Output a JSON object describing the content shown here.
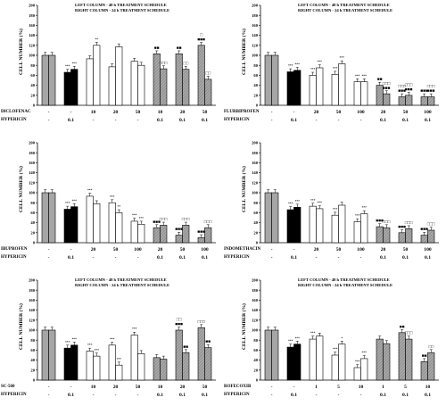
{
  "chart_data": [
    {
      "type": "bar",
      "legend": [
        "LEFT COLUMN - 48 h TREATMENT SCHEDULE",
        "RIGHT COLUMN - 24 h TREATMENT SCHEDULE"
      ],
      "ylabel": "CELL NUMBER (%)",
      "ylim": [
        0,
        200
      ],
      "yticks": [
        0,
        20,
        40,
        60,
        80,
        100,
        120,
        140,
        160,
        180,
        200
      ],
      "drug": "DICLOFENAC",
      "drug_doses": [
        "-",
        "-",
        "10",
        "20",
        "50",
        "10",
        "20",
        "50"
      ],
      "hypericin_label": "HYPERICIN",
      "hypericin_doses": [
        "-",
        "0.1",
        "-",
        "-",
        "-",
        "0.1",
        "0.1",
        "0.1"
      ],
      "groups": [
        {
          "kind": "control",
          "v48": 100,
          "v24": 100,
          "a48": "",
          "a24": ""
        },
        {
          "kind": "hypericin",
          "v48": 66,
          "v24": 72,
          "a48": "***",
          "a24": "***"
        },
        {
          "kind": "drug",
          "v48": 93,
          "v24": 120,
          "a48": "",
          "a24": "**"
        },
        {
          "kind": "drug",
          "v48": 77,
          "v24": 117,
          "a48": "",
          "a24": ""
        },
        {
          "kind": "drug",
          "v48": 88,
          "v24": 80,
          "a48": "",
          "a24": ""
        },
        {
          "kind": "combo",
          "v48": 103,
          "v24": 73,
          "a48": "■■",
          "a24": "□□□"
        },
        {
          "kind": "combo",
          "v48": 103,
          "v24": 72,
          "a48": "■■",
          "a24": "□□"
        },
        {
          "kind": "combo",
          "v48": 120,
          "v24": 52,
          "a48": "□\n■■■",
          "a24": "□□"
        }
      ]
    },
    {
      "type": "bar",
      "legend": [
        "LEFT COLUMN - 48 h TREATMENT SCHEDULE",
        "RIGHT COLUMN - 24 h TREATMENT SCHEDULE"
      ],
      "ylabel": "CELL NUMBER (%)",
      "ylim": [
        0,
        200
      ],
      "yticks": [
        0,
        20,
        40,
        60,
        80,
        100,
        120,
        140,
        160,
        180,
        200
      ],
      "drug": "FLURBIPROFEN",
      "drug_doses": [
        "-",
        "-",
        "20",
        "50",
        "100",
        "20",
        "50",
        "100"
      ],
      "hypericin_label": "HYPERICIN",
      "hypericin_doses": [
        "-",
        "0.1",
        "-",
        "-",
        "-",
        "0.1",
        "0.1",
        "0.1"
      ],
      "groups": [
        {
          "kind": "control",
          "v48": 100,
          "v24": 100,
          "a48": "",
          "a24": ""
        },
        {
          "kind": "hypericin",
          "v48": 67,
          "v24": 70,
          "a48": "***",
          "a24": "***"
        },
        {
          "kind": "drug",
          "v48": 60,
          "v24": 75,
          "a48": "***",
          "a24": "***"
        },
        {
          "kind": "drug",
          "v48": 62,
          "v24": 83,
          "a48": "***",
          "a24": "***"
        },
        {
          "kind": "drug",
          "v48": 47,
          "v24": 47,
          "a48": "***",
          "a24": "***"
        },
        {
          "kind": "combo",
          "v48": 40,
          "v24": 23,
          "a48": "■■",
          "a24": "□□□\n■■■"
        },
        {
          "kind": "combo",
          "v48": 17,
          "v24": 20,
          "a48": "□□□\n■■■",
          "a24": "□□□\n■■■"
        },
        {
          "kind": "combo",
          "v48": 17,
          "v24": 17,
          "a48": "■■■",
          "a24": "□□□\n■■■"
        }
      ]
    },
    {
      "type": "bar",
      "legend": [],
      "ylabel": "CELL NUMBER (%)",
      "ylim": [
        0,
        200
      ],
      "yticks": [
        0,
        20,
        40,
        60,
        80,
        100,
        120,
        140,
        160,
        180,
        200
      ],
      "drug": "IBUPROFEN",
      "drug_doses": [
        "-",
        "-",
        "20",
        "50",
        "100",
        "20",
        "50",
        "100"
      ],
      "hypericin_label": "HYPERICIN",
      "hypericin_doses": [
        "-",
        "0.1",
        "-",
        "-",
        "-",
        "0.1",
        "0.1",
        "0.1"
      ],
      "groups": [
        {
          "kind": "control",
          "v48": 100,
          "v24": 100,
          "a48": "",
          "a24": ""
        },
        {
          "kind": "hypericin",
          "v48": 67,
          "v24": 72,
          "a48": "***",
          "a24": "***"
        },
        {
          "kind": "drug",
          "v48": 93,
          "v24": 78,
          "a48": "***",
          "a24": ""
        },
        {
          "kind": "drug",
          "v48": 80,
          "v24": 60,
          "a48": "***",
          "a24": "**"
        },
        {
          "kind": "drug",
          "v48": 43,
          "v24": 37,
          "a48": "***",
          "a24": "***"
        },
        {
          "kind": "combo",
          "v48": 30,
          "v24": 35,
          "a48": "■■■",
          "a24": "□□□"
        },
        {
          "kind": "combo",
          "v48": 15,
          "v24": 35,
          "a48": "■■■",
          "a24": "□□□"
        },
        {
          "kind": "combo",
          "v48": 10,
          "v24": 30,
          "a48": "■■■",
          "a24": "□□□"
        }
      ]
    },
    {
      "type": "bar",
      "legend": [],
      "ylabel": "CELL NUMBER (%)",
      "ylim": [
        0,
        200
      ],
      "yticks": [
        0,
        20,
        40,
        60,
        80,
        100,
        120,
        140,
        160,
        180,
        200
      ],
      "drug": "INDOMETHACIN",
      "drug_doses": [
        "-",
        "-",
        "20",
        "50",
        "100",
        "20",
        "50",
        "100"
      ],
      "hypericin_label": "HYPERICIN",
      "hypericin_doses": [
        "-",
        "0.1",
        "-",
        "-",
        "-",
        "0.1",
        "0.1",
        "0.1"
      ],
      "groups": [
        {
          "kind": "control",
          "v48": 100,
          "v24": 100,
          "a48": "",
          "a24": ""
        },
        {
          "kind": "hypericin",
          "v48": 66,
          "v24": 71,
          "a48": "***",
          "a24": "***"
        },
        {
          "kind": "drug",
          "v48": 73,
          "v24": 68,
          "a48": "***",
          "a24": "***"
        },
        {
          "kind": "drug",
          "v48": 55,
          "v24": 75,
          "a48": "***",
          "a24": ""
        },
        {
          "kind": "drug",
          "v48": 42,
          "v24": 58,
          "a48": "***",
          "a24": "***"
        },
        {
          "kind": "combo",
          "v48": 32,
          "v24": 30,
          "a48": "■■■",
          "a24": "□□□"
        },
        {
          "kind": "combo",
          "v48": 20,
          "v24": 28,
          "a48": "■■■",
          "a24": "□□□"
        },
        {
          "kind": "combo",
          "v48": 15,
          "v24": 25,
          "a48": "■■■",
          "a24": "□□□"
        }
      ]
    },
    {
      "type": "bar",
      "legend": [
        "LEFT COLUMN - 48 h TREATMENT SCHEDULE",
        "RIGHT COLUMN - 24 h TREATMENT SCHEDULE"
      ],
      "ylabel": "CELL NUMBER (%)",
      "ylim": [
        0,
        200
      ],
      "yticks": [
        0,
        20,
        40,
        60,
        80,
        100,
        120,
        140,
        160,
        180,
        200
      ],
      "drug": "SC-560",
      "drug_doses": [
        "-",
        "-",
        "10",
        "20",
        "50",
        "10",
        "20",
        "50"
      ],
      "hypericin_label": "HYPERICIN",
      "hypericin_doses": [
        "-",
        "0.1",
        "-",
        "-",
        "-",
        "0.1",
        "0.1",
        "0.1"
      ],
      "groups": [
        {
          "kind": "control",
          "v48": 100,
          "v24": 100,
          "a48": "",
          "a24": ""
        },
        {
          "kind": "hypericin",
          "v48": 64,
          "v24": 70,
          "a48": "***",
          "a24": "***"
        },
        {
          "kind": "drug",
          "v48": 58,
          "v24": 48,
          "a48": "***",
          "a24": "***"
        },
        {
          "kind": "drug",
          "v48": 70,
          "v24": 30,
          "a48": "***",
          "a24": "***"
        },
        {
          "kind": "drug",
          "v48": 90,
          "v24": 53,
          "a48": "***",
          "a24": ""
        },
        {
          "kind": "combo",
          "v48": 45,
          "v24": 42,
          "a48": "",
          "a24": ""
        },
        {
          "kind": "combo",
          "v48": 100,
          "v24": 55,
          "a48": "□□\n■■■",
          "a24": "■■"
        },
        {
          "kind": "combo",
          "v48": 105,
          "v24": 65,
          "a48": "□□□",
          "a24": "■■"
        }
      ]
    },
    {
      "type": "bar",
      "legend": [
        "LEFT COLUMN - 48 h TREATMENT SCHEDULE",
        "RIGHT COLUMN - 24 h TREATMENT SCHEDULE"
      ],
      "ylabel": "CELL NUMBER (%)",
      "ylim": [
        0,
        200
      ],
      "yticks": [
        0,
        20,
        40,
        60,
        80,
        100,
        120,
        140,
        160,
        180,
        200
      ],
      "drug": "ROFECOXIB",
      "drug_doses": [
        "-",
        "-",
        "1",
        "5",
        "10",
        "1",
        "5",
        "10"
      ],
      "hypericin_label": "HYPERICIN",
      "hypericin_doses": [
        "-",
        "0.1",
        "-",
        "-",
        "-",
        "0.1",
        "0.1",
        "0.1"
      ],
      "groups": [
        {
          "kind": "control",
          "v48": 100,
          "v24": 100,
          "a48": "",
          "a24": ""
        },
        {
          "kind": "hypericin",
          "v48": 66,
          "v24": 72,
          "a48": "***",
          "a24": "***"
        },
        {
          "kind": "drug",
          "v48": 82,
          "v24": 88,
          "a48": "***",
          "a24": ""
        },
        {
          "kind": "drug",
          "v48": 50,
          "v24": 72,
          "a48": "***",
          "a24": "*"
        },
        {
          "kind": "drug",
          "v48": 25,
          "v24": 43,
          "a48": "***",
          "a24": "***"
        },
        {
          "kind": "combo",
          "v48": 82,
          "v24": 73,
          "a48": "",
          "a24": ""
        },
        {
          "kind": "combo",
          "v48": 95,
          "v24": 82,
          "a48": "■■",
          "a24": "□□□"
        },
        {
          "kind": "combo",
          "v48": 37,
          "v24": 55,
          "a48": "■■",
          "a24": "□□"
        }
      ]
    }
  ],
  "colors": {
    "control": "#a6a6a6",
    "hypericin": "#000000",
    "drug": "#ffffff",
    "combo_fill": "#a8a8a8",
    "combo_stripe": "#7a7a7a",
    "outline": "#000000"
  }
}
